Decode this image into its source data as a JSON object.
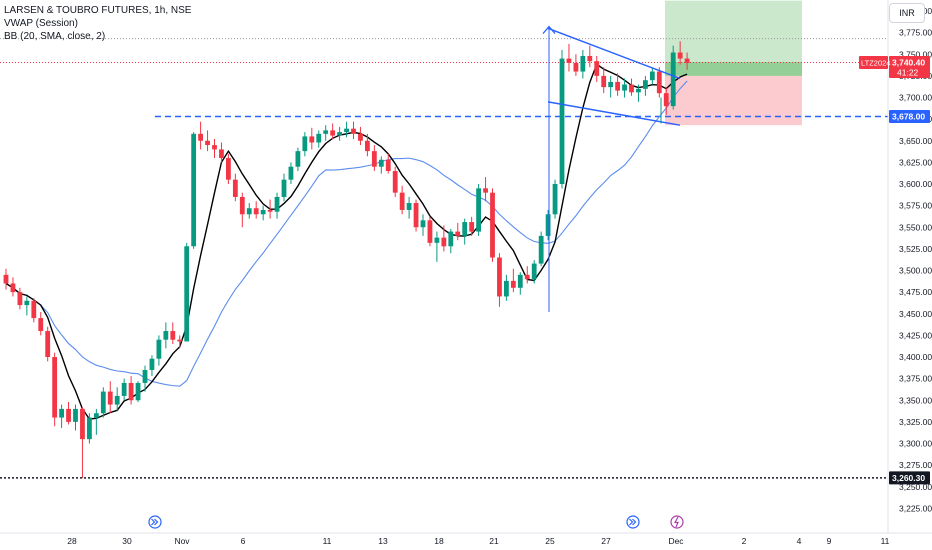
{
  "header": {
    "symbol_line": "LARSEN & TOUBRO FUTURES, 1h, NSE",
    "indicators": [
      "VWAP (Session)",
      "BB (20, SMA, close, 2)"
    ]
  },
  "currency_button": "INR",
  "y_axis": {
    "ticks": [
      "3,225.00",
      "3,250.00",
      "3,275.00",
      "3,300.00",
      "3,325.00",
      "3,350.00",
      "3,375.00",
      "3,400.00",
      "3,425.00",
      "3,450.00",
      "3,475.00",
      "3,500.00",
      "3,525.00",
      "3,550.00",
      "3,575.00",
      "3,600.00",
      "3,625.00",
      "3,650.00",
      "3,675.00",
      "3,700.00",
      "3,725.00",
      "3,750.00",
      "3,775.00",
      "3,800.00"
    ]
  },
  "x_axis": {
    "ticks": [
      "28",
      "30",
      "Nov",
      "6",
      "11",
      "13",
      "18",
      "21",
      "25",
      "27",
      "Dec",
      "2",
      "4",
      "9",
      "11"
    ]
  },
  "price_labels": {
    "symbol_tag": "LTZ2024",
    "last_price": "3,740.40",
    "countdown": "41:22",
    "line_3678": "3,678.00",
    "line_3260": "3,260.30"
  },
  "colors": {
    "up": "#089981",
    "down": "#f23645",
    "trend": "#2962ff",
    "bb": "#5b8def",
    "vwap": "#000000",
    "target_zone": "#c8e6c9",
    "stop_zone": "#fcc8cc"
  },
  "icons": [
    "fast-forward-icon",
    "fast-forward-icon",
    "lightning-icon"
  ],
  "chart_data": {
    "type": "candlestick",
    "ylim": [
      3225,
      3810
    ],
    "ohlc": [
      [
        3495,
        3502,
        3478,
        3485
      ],
      [
        3485,
        3492,
        3470,
        3475
      ],
      [
        3475,
        3480,
        3455,
        3460
      ],
      [
        3460,
        3470,
        3448,
        3465
      ],
      [
        3465,
        3468,
        3440,
        3445
      ],
      [
        3445,
        3452,
        3425,
        3430
      ],
      [
        3430,
        3435,
        3395,
        3400
      ],
      [
        3400,
        3405,
        3320,
        3330
      ],
      [
        3330,
        3345,
        3318,
        3340
      ],
      [
        3340,
        3348,
        3322,
        3325
      ],
      [
        3325,
        3345,
        3315,
        3340
      ],
      [
        3340,
        3342,
        3260,
        3305
      ],
      [
        3305,
        3335,
        3300,
        3330
      ],
      [
        3330,
        3340,
        3310,
        3335
      ],
      [
        3335,
        3365,
        3330,
        3360
      ],
      [
        3360,
        3372,
        3335,
        3345
      ],
      [
        3345,
        3365,
        3338,
        3355
      ],
      [
        3355,
        3375,
        3350,
        3370
      ],
      [
        3370,
        3378,
        3345,
        3350
      ],
      [
        3350,
        3372,
        3348,
        3370
      ],
      [
        3370,
        3390,
        3360,
        3385
      ],
      [
        3385,
        3402,
        3378,
        3398
      ],
      [
        3398,
        3425,
        3390,
        3420
      ],
      [
        3420,
        3440,
        3410,
        3430
      ],
      [
        3430,
        3440,
        3415,
        3420
      ],
      [
        3420,
        3425,
        3410,
        3418
      ],
      [
        3418,
        3532,
        3418,
        3528
      ],
      [
        3528,
        3660,
        3525,
        3658
      ],
      [
        3658,
        3672,
        3640,
        3650
      ],
      [
        3650,
        3662,
        3638,
        3645
      ],
      [
        3645,
        3652,
        3630,
        3640
      ],
      [
        3640,
        3648,
        3625,
        3630
      ],
      [
        3630,
        3635,
        3600,
        3605
      ],
      [
        3605,
        3612,
        3580,
        3585
      ],
      [
        3585,
        3590,
        3550,
        3565
      ],
      [
        3565,
        3578,
        3560,
        3572
      ],
      [
        3572,
        3580,
        3560,
        3565
      ],
      [
        3565,
        3575,
        3558,
        3570
      ],
      [
        3570,
        3582,
        3560,
        3568
      ],
      [
        3568,
        3590,
        3560,
        3585
      ],
      [
        3585,
        3612,
        3580,
        3605
      ],
      [
        3605,
        3625,
        3600,
        3620
      ],
      [
        3620,
        3642,
        3615,
        3638
      ],
      [
        3638,
        3660,
        3632,
        3655
      ],
      [
        3655,
        3665,
        3640,
        3648
      ],
      [
        3648,
        3662,
        3642,
        3658
      ],
      [
        3658,
        3668,
        3650,
        3662
      ],
      [
        3662,
        3670,
        3652,
        3656
      ],
      [
        3656,
        3666,
        3650,
        3660
      ],
      [
        3660,
        3672,
        3654,
        3664
      ],
      [
        3664,
        3672,
        3652,
        3658
      ],
      [
        3658,
        3666,
        3645,
        3650
      ],
      [
        3650,
        3658,
        3632,
        3638
      ],
      [
        3638,
        3645,
        3615,
        3620
      ],
      [
        3620,
        3632,
        3612,
        3628
      ],
      [
        3628,
        3635,
        3612,
        3615
      ],
      [
        3615,
        3620,
        3585,
        3590
      ],
      [
        3590,
        3598,
        3565,
        3570
      ],
      [
        3570,
        3585,
        3560,
        3578
      ],
      [
        3578,
        3582,
        3545,
        3550
      ],
      [
        3550,
        3565,
        3540,
        3558
      ],
      [
        3558,
        3562,
        3528,
        3532
      ],
      [
        3532,
        3545,
        3510,
        3538
      ],
      [
        3538,
        3552,
        3522,
        3528
      ],
      [
        3528,
        3548,
        3520,
        3545
      ],
      [
        3545,
        3555,
        3535,
        3540
      ],
      [
        3540,
        3560,
        3530,
        3556
      ],
      [
        3556,
        3562,
        3540,
        3545
      ],
      [
        3545,
        3600,
        3540,
        3595
      ],
      [
        3595,
        3608,
        3580,
        3590
      ],
      [
        3590,
        3595,
        3510,
        3515
      ],
      [
        3515,
        3520,
        3458,
        3470
      ],
      [
        3470,
        3495,
        3465,
        3488
      ],
      [
        3488,
        3502,
        3475,
        3480
      ],
      [
        3480,
        3498,
        3472,
        3495
      ],
      [
        3495,
        3505,
        3485,
        3490
      ],
      [
        3490,
        3512,
        3485,
        3508
      ],
      [
        3508,
        3545,
        3505,
        3540
      ],
      [
        3540,
        3570,
        3535,
        3565
      ],
      [
        3565,
        3605,
        3560,
        3600
      ],
      [
        3600,
        3755,
        3595,
        3745
      ],
      [
        3745,
        3762,
        3730,
        3740
      ],
      [
        3740,
        3750,
        3725,
        3730
      ],
      [
        3730,
        3755,
        3722,
        3748
      ],
      [
        3748,
        3760,
        3735,
        3742
      ],
      [
        3742,
        3748,
        3718,
        3725
      ],
      [
        3725,
        3735,
        3705,
        3712
      ],
      [
        3712,
        3725,
        3700,
        3718
      ],
      [
        3718,
        3728,
        3702,
        3708
      ],
      [
        3708,
        3722,
        3700,
        3715
      ],
      [
        3715,
        3722,
        3702,
        3706
      ],
      [
        3706,
        3715,
        3695,
        3710
      ],
      [
        3710,
        3725,
        3702,
        3720
      ],
      [
        3720,
        3735,
        3715,
        3730
      ],
      [
        3730,
        3735,
        3700,
        3705
      ],
      [
        3705,
        3712,
        3680,
        3690
      ],
      [
        3690,
        3760,
        3686,
        3752
      ],
      [
        3752,
        3765,
        3738,
        3745
      ],
      [
        3745,
        3752,
        3732,
        3740
      ]
    ],
    "support_level": 3678.0,
    "reference_level": 3260.3,
    "last_price": 3740.4,
    "trade_zone": {
      "entry": 3725,
      "target": 3812,
      "stop": 3668
    },
    "channel": {
      "upper": [
        3780,
        3722
      ],
      "lower": [
        3695,
        3668
      ]
    }
  }
}
